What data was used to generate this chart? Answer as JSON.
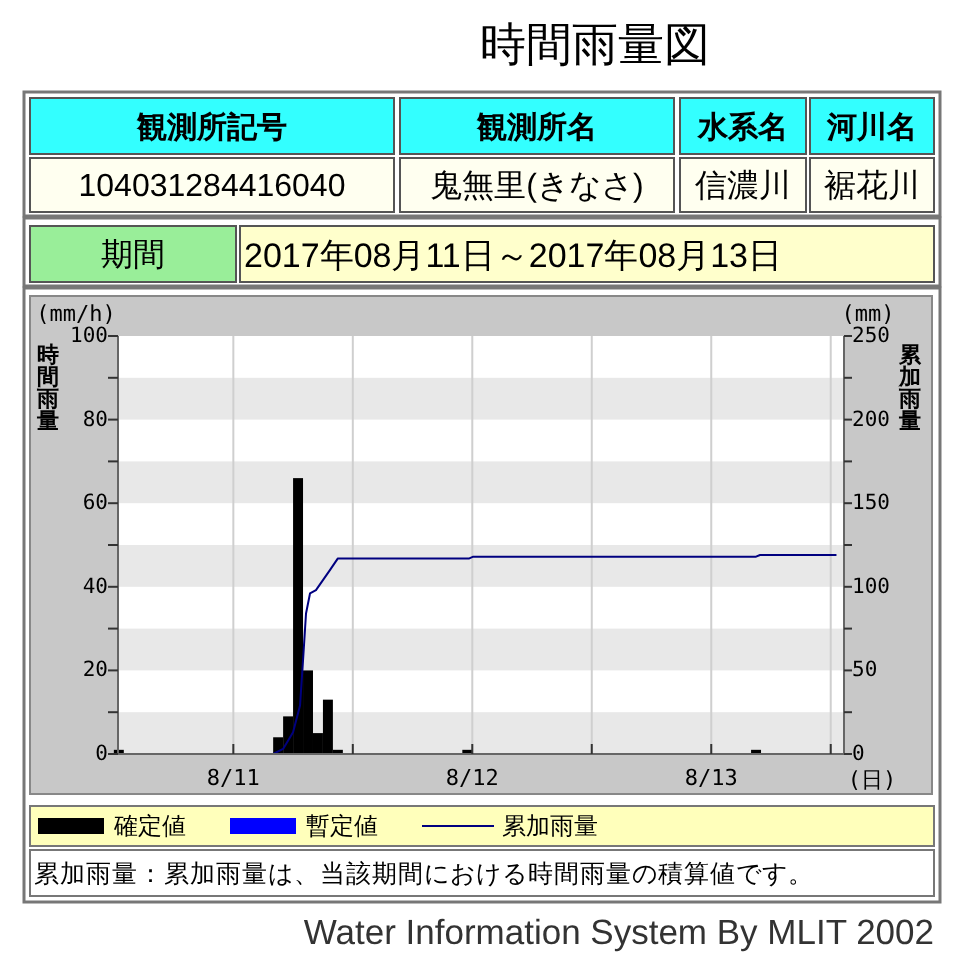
{
  "chart_data": {
    "type": "bar",
    "title": "時間雨量図",
    "xlabel": "(日)",
    "ylabel": "時間雨量",
    "y2label": "累加雨量",
    "annotations": [
      "観測所記号",
      "観測所名",
      "水系名",
      "河川名",
      "104031284416040",
      "鬼無里(きなさ)",
      "信濃川",
      "裾花川",
      "期間",
      "2017年08月11日～2017年08月13日",
      "(mm/h)",
      "(mm)",
      "累加雨量：累加雨量は、当該期間における時間雨量の積算値です。",
      "Water Information System By MLIT 2002"
    ],
    "x": [
      "2017-08-11T00:30",
      "2017-08-11T16:30",
      "2017-08-11T17:30",
      "2017-08-11T18:30",
      "2017-08-11T19:30",
      "2017-08-11T20:30",
      "2017-08-11T21:30",
      "2017-08-11T22:30",
      "2017-08-12T11:30",
      "2017-08-13T16:30"
    ],
    "series": [
      {
        "name": "確定値",
        "color": "#000000",
        "values": [
          1,
          4,
          9,
          66,
          20,
          5,
          13,
          1,
          1,
          1
        ]
      },
      {
        "name": "暫定値",
        "color": "#0000ff",
        "values": [
          null,
          null,
          null,
          null,
          null,
          null,
          null,
          null,
          null,
          null
        ]
      },
      {
        "name": "累加雨量",
        "type": "line",
        "axis": "y2",
        "color": "#000080",
        "x": [
          "2017-08-11T01:24",
          "2017-08-11T16:00",
          "2017-08-11T17:00",
          "2017-08-11T18:00",
          "2017-08-11T18:42",
          "2017-08-11T19:00",
          "2017-08-11T19:18",
          "2017-08-11T19:42",
          "2017-08-11T20:18",
          "2017-08-11T21:00",
          "2017-08-11T21:42",
          "2017-08-11T22:30",
          "2017-08-12T11:42",
          "2017-08-12T12:06",
          "2017-08-13T16:30",
          "2017-08-13T16:54",
          "2017-08-14T00:30"
        ],
        "values": [
          0,
          0,
          3,
          13,
          29,
          56,
          84,
          96,
          98,
          104,
          110,
          117,
          117,
          118,
          118,
          119,
          119
        ]
      }
    ],
    "xlim": [
      "2017-08-11T00:25",
      "2017-08-14T01:20"
    ],
    "xticks": [
      {
        "value": "2017-08-11T12:00",
        "label": "8/11"
      },
      {
        "value": "2017-08-12T00:00",
        "label": null
      },
      {
        "value": "2017-08-12T12:00",
        "label": "8/12"
      },
      {
        "value": "2017-08-13T00:00",
        "label": null
      },
      {
        "value": "2017-08-13T12:00",
        "label": "8/13"
      },
      {
        "value": "2017-08-14T00:00",
        "label": null
      }
    ],
    "ylim": [
      0,
      100
    ],
    "yticks": [
      0,
      {
        "value": 10,
        "label": null
      },
      20,
      {
        "value": 30,
        "label": null
      },
      40,
      {
        "value": 50,
        "label": null
      },
      60,
      {
        "value": 70,
        "label": null
      },
      80,
      {
        "value": 90,
        "label": null
      },
      100
    ],
    "y2lim": [
      0,
      250
    ],
    "y2ticks": [
      0,
      {
        "value": 25,
        "label": null
      },
      50,
      {
        "value": 75,
        "label": null
      },
      100,
      {
        "value": 125,
        "label": null
      },
      150,
      {
        "value": 175,
        "label": null
      },
      200,
      {
        "value": 225,
        "label": null
      },
      250
    ],
    "bands": [
      {
        "axis": "y",
        "from": 0,
        "to": 10,
        "color": "#e8e8e8"
      },
      {
        "axis": "y",
        "from": 20,
        "to": 30,
        "color": "#e8e8e8"
      },
      {
        "axis": "y",
        "from": 40,
        "to": 50,
        "color": "#e8e8e8"
      },
      {
        "axis": "y",
        "from": 60,
        "to": 70,
        "color": "#e8e8e8"
      },
      {
        "axis": "y",
        "from": 80,
        "to": 90,
        "color": "#e8e8e8"
      }
    ],
    "grid": "x",
    "legend": "bottom"
  }
}
